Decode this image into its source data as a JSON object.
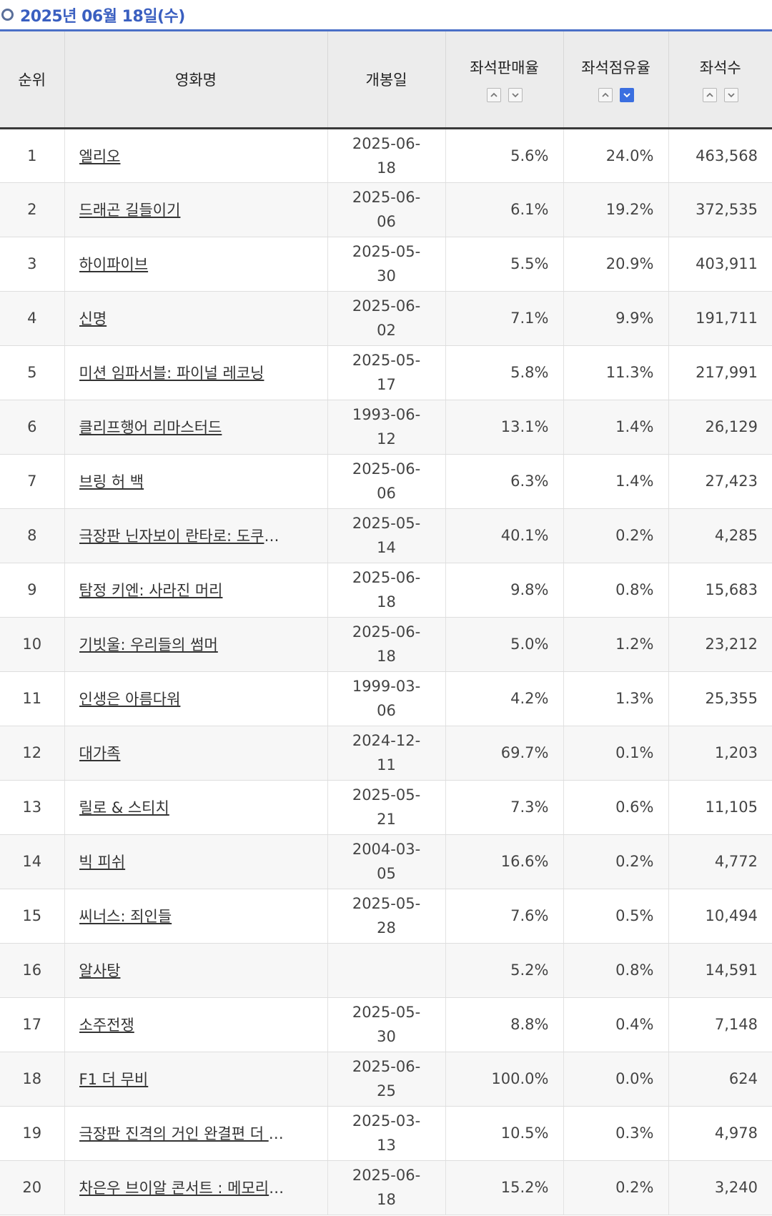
{
  "date_header": "2025년 06월 18일(수)",
  "columns": {
    "rank": "순위",
    "title": "영화명",
    "release": "개봉일",
    "sales_rate": "좌석판매율",
    "share": "좌석점유율",
    "seats": "좌석수"
  },
  "rows": [
    {
      "rank": "1",
      "title": "엘리오",
      "release": "2025-06-18",
      "sales_rate": "5.6%",
      "share": "24.0%",
      "seats": "463,568"
    },
    {
      "rank": "2",
      "title": "드래곤 길들이기",
      "release": "2025-06-06",
      "sales_rate": "6.1%",
      "share": "19.2%",
      "seats": "372,535"
    },
    {
      "rank": "3",
      "title": "하이파이브",
      "release": "2025-05-30",
      "sales_rate": "5.5%",
      "share": "20.9%",
      "seats": "403,911"
    },
    {
      "rank": "4",
      "title": "신명",
      "release": "2025-06-02",
      "sales_rate": "7.1%",
      "share": "9.9%",
      "seats": "191,711"
    },
    {
      "rank": "5",
      "title": "미션 임파서블: 파이널 레코닝",
      "release": "2025-05-17",
      "sales_rate": "5.8%",
      "share": "11.3%",
      "seats": "217,991"
    },
    {
      "rank": "6",
      "title": "클리프행어 리마스터드",
      "release": "1993-06-12",
      "sales_rate": "13.1%",
      "share": "1.4%",
      "seats": "26,129"
    },
    {
      "rank": "7",
      "title": "브링 허 백",
      "release": "2025-06-06",
      "sales_rate": "6.3%",
      "share": "1.4%",
      "seats": "27,423"
    },
    {
      "rank": "8",
      "title": "극장판 닌자보이 란타로: 도쿠타케…",
      "release": "2025-05-14",
      "sales_rate": "40.1%",
      "share": "0.2%",
      "seats": "4,285"
    },
    {
      "rank": "9",
      "title": "탐정 키엔: 사라진 머리",
      "release": "2025-06-18",
      "sales_rate": "9.8%",
      "share": "0.8%",
      "seats": "15,683"
    },
    {
      "rank": "10",
      "title": "기빗울: 우리들의 썸머",
      "release": "2025-06-18",
      "sales_rate": "5.0%",
      "share": "1.2%",
      "seats": "23,212"
    },
    {
      "rank": "11",
      "title": "인생은 아름다워",
      "release": "1999-03-06",
      "sales_rate": "4.2%",
      "share": "1.3%",
      "seats": "25,355"
    },
    {
      "rank": "12",
      "title": "대가족",
      "release": "2024-12-11",
      "sales_rate": "69.7%",
      "share": "0.1%",
      "seats": "1,203"
    },
    {
      "rank": "13",
      "title": "릴로 & 스티치",
      "release": "2025-05-21",
      "sales_rate": "7.3%",
      "share": "0.6%",
      "seats": "11,105"
    },
    {
      "rank": "14",
      "title": "빅 피쉬",
      "release": "2004-03-05",
      "sales_rate": "16.6%",
      "share": "0.2%",
      "seats": "4,772"
    },
    {
      "rank": "15",
      "title": "씨너스: 죄인들",
      "release": "2025-05-28",
      "sales_rate": "7.6%",
      "share": "0.5%",
      "seats": "10,494"
    },
    {
      "rank": "16",
      "title": "알사탕",
      "release": "",
      "sales_rate": "5.2%",
      "share": "0.8%",
      "seats": "14,591"
    },
    {
      "rank": "17",
      "title": "소주전쟁",
      "release": "2025-05-30",
      "sales_rate": "8.8%",
      "share": "0.4%",
      "seats": "7,148"
    },
    {
      "rank": "18",
      "title": "F1 더 무비",
      "release": "2025-06-25",
      "sales_rate": "100.0%",
      "share": "0.0%",
      "seats": "624"
    },
    {
      "rank": "19",
      "title": "극장판 진격의 거인 완결편 더 라스…",
      "release": "2025-03-13",
      "sales_rate": "10.5%",
      "share": "0.3%",
      "seats": "4,978"
    },
    {
      "rank": "20",
      "title": "차은우 브이알 콘서트 : 메모리즈 (…",
      "release": "2025-06-18",
      "sales_rate": "15.2%",
      "share": "0.2%",
      "seats": "3,240"
    }
  ],
  "sort": {
    "active_column": "share",
    "active_direction": "desc"
  },
  "colors": {
    "accent": "#3b6fe0",
    "header_text": "#3a5fc0",
    "header_bg": "#ececec"
  }
}
